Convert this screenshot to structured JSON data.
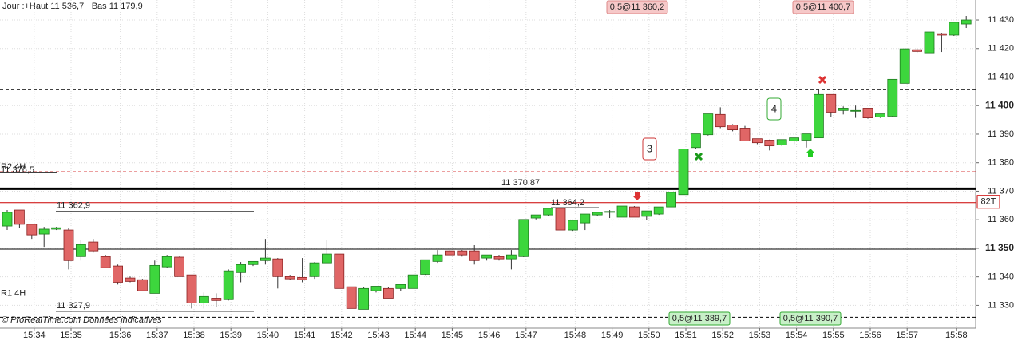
{
  "chart_data": {
    "type": "candlestick",
    "title": "Jour :+Haut 11 536,7 +Bas 11 179,9",
    "footer": "© ProRealTime.com Données indicatives",
    "categories": [
      null,
      null,
      "15:34",
      null,
      null,
      "15:35",
      null,
      null,
      null,
      "15:36",
      null,
      null,
      "15:37",
      null,
      null,
      "15:38",
      null,
      null,
      "15:39",
      null,
      null,
      "15:40",
      null,
      null,
      "15:41",
      null,
      null,
      "15:42",
      null,
      null,
      "15:43",
      null,
      null,
      "15:44",
      null,
      null,
      "15:45",
      null,
      null,
      "15:46",
      null,
      null,
      "15:47",
      null,
      null,
      null,
      "15:48",
      null,
      null,
      "15:49",
      null,
      null,
      "15:50",
      null,
      null,
      "15:51",
      null,
      null,
      "15:52",
      null,
      null,
      "15:53",
      null,
      null,
      "15:54",
      null,
      null,
      "15:55",
      null,
      null,
      "15:56",
      null,
      null,
      "15:57",
      null,
      null,
      null,
      "15:58",
      null
    ],
    "open": [
      11357.8,
      11363.4,
      11358.4,
      11355.0,
      11356.7,
      11356.4,
      11347.1,
      11352.2,
      11347.1,
      11343.8,
      11339.6,
      11339.0,
      11334.2,
      11343.5,
      11346.9,
      11340.7,
      11330.8,
      11332.5,
      11332.0,
      11341.5,
      11344.3,
      11345.7,
      11346.3,
      11340.1,
      11339.8,
      11340.1,
      11344.9,
      11348.0,
      11336.5,
      11328.6,
      11335.1,
      11335.9,
      11335.9,
      11335.9,
      11340.9,
      11345.4,
      11349.1,
      11349.1,
      11349.1,
      11346.6,
      11347.1,
      11346.3,
      11347.1,
      11360.6,
      11361.7,
      11364.0,
      11356.4,
      11358.9,
      11361.7,
      11362.6,
      11360.9,
      11364.5,
      11361.2,
      11362.0,
      11364.5,
      11368.8,
      11385.3,
      11389.8,
      11396.9,
      11393.2,
      11392.1,
      11388.4,
      11387.9,
      11386.2,
      11387.6,
      11387.9,
      11388.7,
      11403.9,
      11398.3,
      11398.3,
      11399.1,
      11396.0,
      11396.3,
      11407.8,
      11419.6,
      11418.5,
      11425.2,
      11424.7,
      11428.6
    ],
    "high": [
      11363.4,
      11363.4,
      11358.4,
      11357.5,
      11357.5,
      11357.0,
      11352.8,
      11353.3,
      11347.7,
      11344.3,
      11340.1,
      11339.3,
      11345.7,
      11347.7,
      11347.1,
      11340.7,
      11334.5,
      11334.2,
      11342.6,
      11345.2,
      11345.4,
      11353.3,
      11346.6,
      11340.7,
      11346.6,
      11345.2,
      11352.8,
      11348.0,
      11336.5,
      11336.5,
      11336.7,
      11336.5,
      11337.3,
      11340.7,
      11346.0,
      11349.4,
      11349.4,
      11349.4,
      11351.1,
      11347.7,
      11347.7,
      11349.4,
      11360.1,
      11361.7,
      11364.0,
      11364.0,
      11359.8,
      11362.0,
      11362.6,
      11363.4,
      11364.8,
      11364.8,
      11363.1,
      11364.5,
      11369.6,
      11384.8,
      11390.1,
      11397.1,
      11399.4,
      11393.5,
      11392.9,
      11388.4,
      11388.1,
      11388.1,
      11388.7,
      11390.1,
      11405.6,
      11403.9,
      11399.7,
      11400.0,
      11399.1,
      11397.1,
      11409.2,
      11419.9,
      11419.9,
      11425.8,
      11425.5,
      11429.2,
      11431.4
    ],
    "low": [
      11356.4,
      11357.0,
      11353.3,
      11350.5,
      11356.4,
      11342.6,
      11345.7,
      11348.5,
      11343.2,
      11337.3,
      11338.1,
      11335.1,
      11334.2,
      11343.2,
      11340.1,
      11328.9,
      11328.9,
      11329.4,
      11331.7,
      11338.1,
      11343.8,
      11344.3,
      11335.9,
      11339.0,
      11338.1,
      11339.3,
      11344.9,
      11335.9,
      11328.9,
      11328.6,
      11334.5,
      11332.5,
      11335.1,
      11335.9,
      11340.7,
      11344.9,
      11347.7,
      11347.1,
      11344.3,
      11345.7,
      11345.7,
      11342.6,
      11346.9,
      11360.1,
      11361.2,
      11356.4,
      11356.1,
      11356.4,
      11361.4,
      11360.6,
      11360.9,
      11360.9,
      11360.0,
      11361.7,
      11364.5,
      11368.8,
      11384.8,
      11389.5,
      11392.1,
      11391.0,
      11387.6,
      11386.5,
      11384.3,
      11385.9,
      11386.5,
      11385.3,
      11388.7,
      11396.0,
      11396.9,
      11395.7,
      11395.4,
      11395.7,
      11396.0,
      11407.8,
      11418.5,
      11418.5,
      11418.8,
      11424.4,
      11427.2
    ],
    "close": [
      11362.6,
      11358.4,
      11354.7,
      11356.7,
      11357.2,
      11345.7,
      11351.3,
      11349.1,
      11343.2,
      11338.1,
      11338.4,
      11335.1,
      11344.0,
      11347.1,
      11340.1,
      11330.8,
      11333.1,
      11331.7,
      11342.1,
      11344.3,
      11345.4,
      11346.6,
      11340.1,
      11339.3,
      11339.0,
      11344.9,
      11348.0,
      11335.9,
      11328.9,
      11335.9,
      11336.7,
      11332.5,
      11337.3,
      11340.7,
      11346.0,
      11347.7,
      11347.7,
      11347.7,
      11345.7,
      11347.7,
      11346.3,
      11347.7,
      11360.1,
      11361.7,
      11364.0,
      11356.4,
      11359.8,
      11362.0,
      11362.6,
      11362.9,
      11364.8,
      11360.9,
      11363.1,
      11364.5,
      11369.6,
      11384.8,
      11390.1,
      11397.1,
      11392.6,
      11391.5,
      11387.6,
      11387.0,
      11385.9,
      11388.1,
      11388.7,
      11390.1,
      11403.9,
      11397.7,
      11399.1,
      11398.3,
      11395.7,
      11397.1,
      11409.2,
      11419.9,
      11419.0,
      11425.8,
      11424.7,
      11429.2,
      11430.0
    ],
    "up_color": "#3dd63d",
    "down_color": "#e06666",
    "ylim": [
      11322,
      11437
    ],
    "yticks": [
      {
        "value": 11430,
        "label": "11 430"
      },
      {
        "value": 11420,
        "label": "11 420"
      },
      {
        "value": 11410,
        "label": "11 410"
      },
      {
        "value": 11400,
        "label": "11 400"
      },
      {
        "value": 11390,
        "label": "11 390"
      },
      {
        "value": 11380,
        "label": "11 380"
      },
      {
        "value": 11370,
        "label": "11 370"
      },
      {
        "value": 11360,
        "label": "11 360"
      },
      {
        "value": 11350,
        "label": "11 350"
      },
      {
        "value": 11340,
        "label": "11 340"
      },
      {
        "value": 11330,
        "label": "11 330"
      }
    ],
    "grid": true,
    "levels": [
      {
        "value": 11405.6,
        "color": "#000000",
        "style": "dashed"
      },
      {
        "value": 11376.8,
        "color": "#cc0000",
        "style": "dashed",
        "label": "R2 4H"
      },
      {
        "value": 11376.5,
        "color": "#000000",
        "style": "solid",
        "label": "11 376,5"
      },
      {
        "value": 11370.87,
        "color": "#000000",
        "style": "thick",
        "label": "11 370,87"
      },
      {
        "value": 11366.0,
        "color": "#cc0000",
        "style": "solid",
        "label": "82T"
      },
      {
        "value": 11364.2,
        "color": "#000000",
        "style": "solid",
        "label": "11 364,2"
      },
      {
        "value": 11362.9,
        "color": "#000000",
        "style": "solid",
        "label": "11 362,9"
      },
      {
        "value": 11349.7,
        "color": "#000000",
        "style": "solid"
      },
      {
        "value": 11332.2,
        "color": "#cc0000",
        "style": "solid",
        "label": "R1 4H"
      },
      {
        "value": 11327.9,
        "color": "#000000",
        "style": "solid",
        "label": "11 327,9"
      },
      {
        "value": 11325.8,
        "color": "#000000",
        "style": "dashed"
      }
    ],
    "orders": [
      "0,5@11 360,2",
      "0,5@11 400,7",
      "0,5@11 389,7",
      "0,5@11 390,7"
    ],
    "counters": [
      "3",
      "4"
    ]
  }
}
